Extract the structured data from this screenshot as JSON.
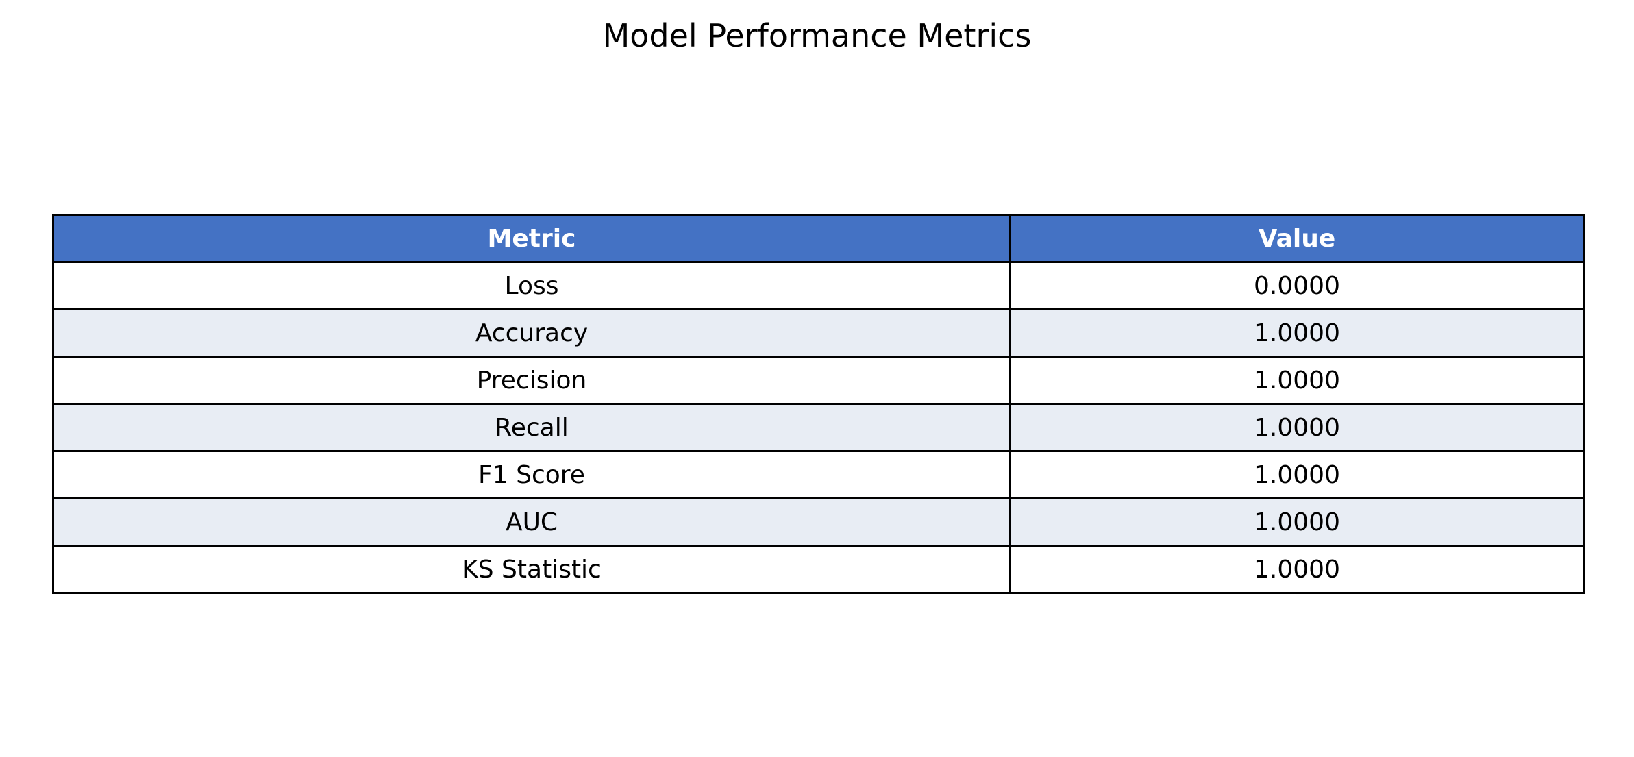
{
  "chart_data": {
    "type": "table",
    "title": "Model Performance Metrics",
    "columns": [
      "Metric",
      "Value"
    ],
    "rows": [
      [
        "Loss",
        "0.0000"
      ],
      [
        "Accuracy",
        "1.0000"
      ],
      [
        "Precision",
        "1.0000"
      ],
      [
        "Recall",
        "1.0000"
      ],
      [
        "F1 Score",
        "1.0000"
      ],
      [
        "AUC",
        "1.0000"
      ],
      [
        "KS Statistic",
        "1.0000"
      ]
    ],
    "colors": {
      "header_background": "#4472C4",
      "header_text": "#FFFFFF",
      "row_even": "#FFFFFF",
      "row_odd": "#E8EDF4",
      "border": "#000000"
    }
  }
}
